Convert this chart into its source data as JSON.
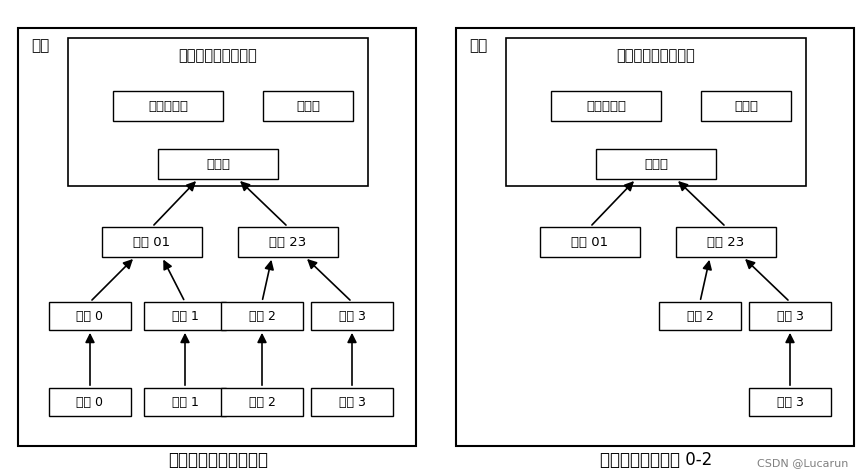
{
  "bg_color": "#ffffff",
  "box_color": "#ffffff",
  "box_edge": "#000000",
  "text_color": "#000000",
  "caption1": "交易被哈希进默克尔树",
  "caption2": "从区块中剪除交易 0-2",
  "watermark": "CSDN @Lucarun",
  "left_label": "区块",
  "right_label": "区块",
  "font_size_label": 11,
  "font_size_box": 10,
  "font_size_caption": 12,
  "font_size_watermark": 8
}
